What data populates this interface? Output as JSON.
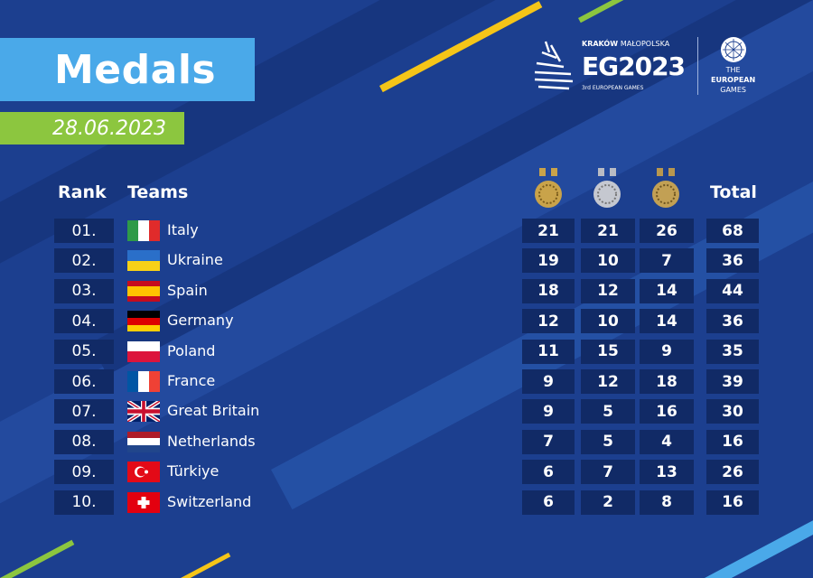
{
  "header": {
    "title": "Medals",
    "date": "28.06.2023"
  },
  "logo": {
    "city": "KRAKÓW",
    "region": "MAŁOPOLSKA",
    "mark": "EG2023",
    "subtitle": "3rd EUROPEAN GAMES",
    "org_line1": "THE",
    "org_line2": "EUROPEAN",
    "org_line3": "GAMES"
  },
  "table": {
    "headers": {
      "rank": "Rank",
      "teams": "Teams",
      "gold": "gold-medal-icon",
      "silver": "silver-medal-icon",
      "bronze": "bronze-medal-icon",
      "total": "Total"
    },
    "rows": [
      {
        "rank": "01.",
        "team": "Italy",
        "flag": "italy",
        "gold": "21",
        "silver": "21",
        "bronze": "26",
        "total": "68"
      },
      {
        "rank": "02.",
        "team": "Ukraine",
        "flag": "ukraine",
        "gold": "19",
        "silver": "10",
        "bronze": "7",
        "total": "36"
      },
      {
        "rank": "03.",
        "team": "Spain",
        "flag": "spain",
        "gold": "18",
        "silver": "12",
        "bronze": "14",
        "total": "44"
      },
      {
        "rank": "04.",
        "team": "Germany",
        "flag": "germany",
        "gold": "12",
        "silver": "10",
        "bronze": "14",
        "total": "36"
      },
      {
        "rank": "05.",
        "team": "Poland",
        "flag": "poland",
        "gold": "11",
        "silver": "15",
        "bronze": "9",
        "total": "35"
      },
      {
        "rank": "06.",
        "team": "France",
        "flag": "france",
        "gold": "9",
        "silver": "12",
        "bronze": "18",
        "total": "39"
      },
      {
        "rank": "07.",
        "team": "Great Britain",
        "flag": "great-britain",
        "gold": "9",
        "silver": "5",
        "bronze": "16",
        "total": "30"
      },
      {
        "rank": "08.",
        "team": "Netherlands",
        "flag": "netherlands",
        "gold": "7",
        "silver": "5",
        "bronze": "4",
        "total": "16"
      },
      {
        "rank": "09.",
        "team": "Türkiye",
        "flag": "turkiye",
        "gold": "6",
        "silver": "7",
        "bronze": "13",
        "total": "26"
      },
      {
        "rank": "10.",
        "team": "Switzerland",
        "flag": "switzerland",
        "gold": "6",
        "silver": "2",
        "bronze": "8",
        "total": "16"
      }
    ]
  },
  "colors": {
    "background": "#1c3f8f",
    "title_box": "#4aa9e9",
    "date_box": "#8cc63f",
    "cell": "#112a66",
    "gold": "#c9a34a",
    "silver": "#b9bcc4",
    "bronze": "#b8974e"
  }
}
